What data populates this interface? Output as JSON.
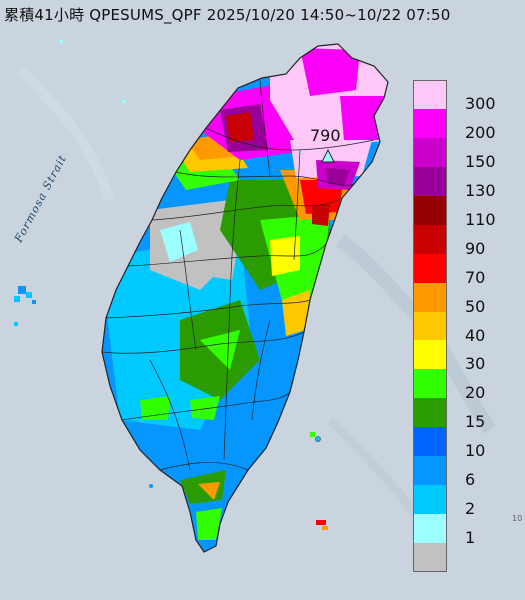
{
  "title": "累積41小時 QPESUMS_QPF 2025/10/20 14:50~10/22 07:50",
  "strait_label": "Formosa Strait",
  "peak_value": "790",
  "edge_mark": "10",
  "legend": [
    {
      "label": "300",
      "color": "#fdc7f8"
    },
    {
      "label": "200",
      "color": "#fa00f9"
    },
    {
      "label": "150",
      "color": "#cc00cc"
    },
    {
      "label": "130",
      "color": "#990099"
    },
    {
      "label": "110",
      "color": "#970000"
    },
    {
      "label": "90",
      "color": "#c80000"
    },
    {
      "label": "70",
      "color": "#fe0000"
    },
    {
      "label": "50",
      "color": "#fe9900"
    },
    {
      "label": "40",
      "color": "#fdc800"
    },
    {
      "label": "30",
      "color": "#fffd00"
    },
    {
      "label": "20",
      "color": "#32ff00"
    },
    {
      "label": "15",
      "color": "#2a9b00"
    },
    {
      "label": "10",
      "color": "#0163fd"
    },
    {
      "label": "6",
      "color": "#0597ff"
    },
    {
      "label": "2",
      "color": "#00c9ff"
    },
    {
      "label": "1",
      "color": "#9bffff"
    },
    {
      "label": "",
      "color": "#c1c1c1"
    }
  ]
}
